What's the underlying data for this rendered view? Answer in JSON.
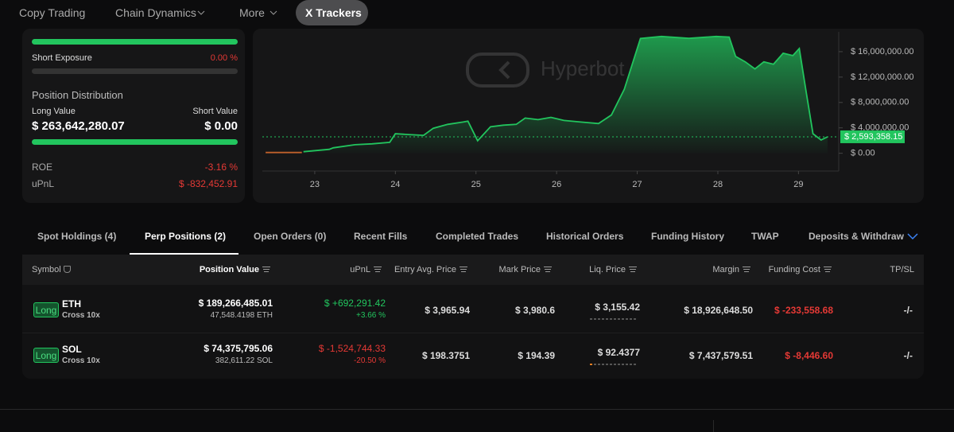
{
  "nav": {
    "items": [
      "Copy Trading",
      "Chain Dynamics",
      "More",
      "X Trackers"
    ]
  },
  "summary": {
    "short_exposure_label": "Short Exposure",
    "short_exposure_value": "0.00 %",
    "distribution_title": "Position Distribution",
    "long_value_label": "Long Value",
    "short_value_label": "Short Value",
    "long_value": "$ 263,642,280.07",
    "short_value": "$ 0.00",
    "roe_label": "ROE",
    "roe_value": "-3.16 %",
    "upnl_label": "uPnL",
    "upnl_value": "$ -832,452.91"
  },
  "chart_data": {
    "type": "area",
    "watermark": "Hyperbot",
    "series": [
      {
        "color": "#c0612b",
        "x": [
          22.39,
          22.84
        ],
        "values": [
          120000,
          120000
        ]
      },
      {
        "color": "#22c55e",
        "x": [
          22.86,
          23.18,
          23.23,
          23.5,
          23.71,
          23.93,
          24.0,
          24.16,
          24.35,
          24.47,
          24.65,
          24.84,
          24.9,
          25.02,
          25.18,
          25.34,
          25.5,
          25.61,
          25.77,
          25.93,
          26.09,
          26.3,
          26.52,
          26.68,
          26.84,
          27.04,
          27.3,
          27.64,
          27.98,
          28.14,
          28.22,
          28.34,
          28.46,
          28.57,
          28.69,
          28.81,
          28.93,
          29.01,
          29.09,
          29.18,
          29.28,
          29.36
        ],
        "values": [
          250000,
          620000,
          860000,
          1350000,
          1480000,
          1720000,
          3080000,
          2950000,
          2830000,
          3940000,
          4550000,
          4920000,
          5050000,
          1970000,
          4180000,
          4430000,
          4550000,
          5540000,
          5290000,
          5660000,
          5170000,
          4920000,
          4680000,
          6030000,
          10090000,
          18090000,
          18400000,
          18100000,
          18400000,
          18300000,
          15260000,
          14400000,
          13290000,
          14400000,
          14030000,
          15750000,
          15380000,
          16490000,
          10090000,
          3080000,
          2090000,
          2590000
        ]
      }
    ],
    "xlim": [
      22.35,
      29.45
    ],
    "xticks": [
      23,
      24,
      25,
      26,
      27,
      28,
      29
    ],
    "ylim": [
      -2800000,
      18500000
    ],
    "yticks": [
      {
        "value": 0,
        "label": "$ 0.00"
      },
      {
        "value": 4000000,
        "label": "$ 4,000,000.00"
      },
      {
        "value": 8000000,
        "label": "$ 8,000,000.00"
      },
      {
        "value": 12000000,
        "label": "$ 12,000,000.00"
      },
      {
        "value": 16000000,
        "label": "$ 16,000,000.00"
      }
    ],
    "current": {
      "value": 2593358.15,
      "label": "$ 2,593,358.15"
    }
  },
  "tabs": [
    "Spot Holdings (4)",
    "Perp Positions (2)",
    "Open Orders (0)",
    "Recent Fills",
    "Completed Trades",
    "Historical Orders",
    "Funding History",
    "TWAP",
    "Deposits & Withdraw"
  ],
  "table": {
    "headers": [
      "Symbol",
      "Position Value",
      "uPnL",
      "Entry Avg. Price",
      "Mark Price",
      "Liq. Price",
      "Margin",
      "Funding Cost",
      "TP/SL"
    ],
    "rows": [
      {
        "side": "Long",
        "symbol": "ETH",
        "mode": "Cross 10x",
        "position_value": "$ 189,266,485.01",
        "size": "47,548.4198 ETH",
        "upnl": "$ +692,291.42",
        "upnl_pct": "+3.66 %",
        "entry": "$ 3,965.94",
        "mark": "$ 3,980.6",
        "liq": "$ 3,155.42",
        "margin": "$ 18,926,648.50",
        "funding": "$ -233,558.68",
        "tpsl": "-/-"
      },
      {
        "side": "Long",
        "symbol": "SOL",
        "mode": "Cross 10x",
        "position_value": "$ 74,375,795.06",
        "size": "382,611.22 SOL",
        "upnl": "$ -1,524,744.33",
        "upnl_pct": "-20.50 %",
        "entry": "$ 198.3751",
        "mark": "$ 194.39",
        "liq": "$ 92.4377",
        "margin": "$ 7,437,579.51",
        "funding": "$ -8,446.60",
        "tpsl": "-/-"
      }
    ]
  }
}
